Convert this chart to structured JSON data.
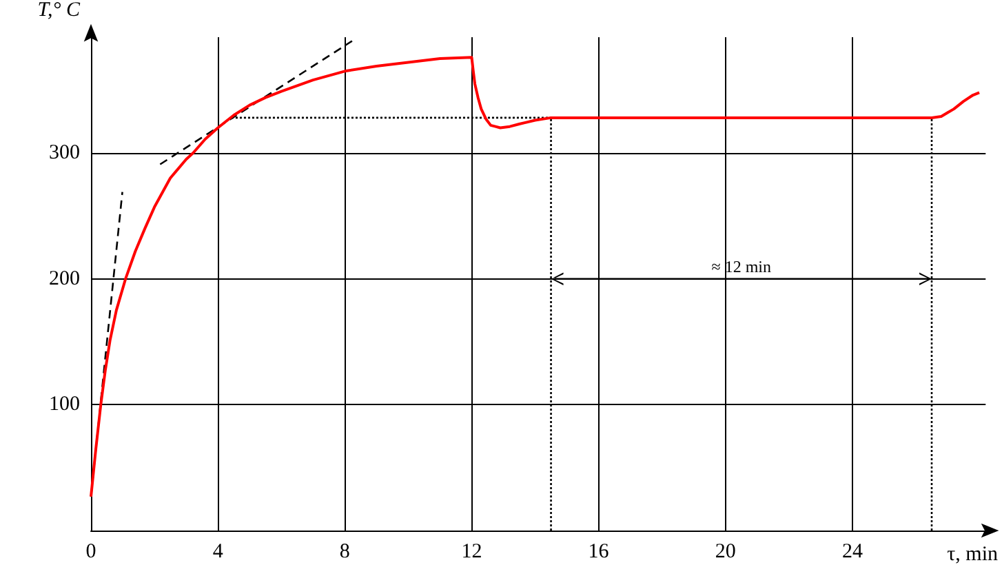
{
  "chart_data": {
    "type": "line",
    "xlabel": "τ, min",
    "ylabel": "T,° C",
    "xlim": [
      0,
      28.2
    ],
    "ylim": [
      0,
      392
    ],
    "xticks": [
      0,
      4,
      8,
      12,
      16,
      20,
      24
    ],
    "yticks": [
      100,
      200,
      300
    ],
    "grid": true,
    "marker": "none",
    "series": [
      {
        "color": "#ff0000",
        "line_style": "solid",
        "x": [
          0,
          0.15,
          0.31,
          0.45,
          0.6,
          0.8,
          1.09,
          1.4,
          1.7,
          2,
          2.5,
          3,
          3.22,
          3.6,
          4,
          4.5,
          5,
          5.5,
          6,
          7,
          8,
          9,
          10,
          11,
          12,
          12.05,
          12.1,
          12.2,
          12.3,
          12.45,
          12.6,
          12.75,
          12.9,
          13.2,
          13.5,
          14,
          14.5,
          20,
          26.5,
          26.8,
          27,
          27.2,
          27.5,
          27.8,
          28
        ],
        "values": [
          27,
          64,
          100,
          127,
          151,
          175,
          200,
          222,
          240,
          257,
          280,
          295,
          300,
          311,
          320,
          330,
          338,
          344,
          349,
          358,
          365,
          369,
          372,
          375,
          376,
          365,
          355,
          344,
          335,
          327,
          322,
          321,
          320,
          321,
          323,
          326,
          328,
          328,
          328,
          329,
          332,
          335,
          341,
          346,
          348
        ]
      },
      {
        "type": "line",
        "color": "#000000",
        "line_style": "dashed",
        "x": [
          0,
          0.99
        ],
        "values": [
          27,
          269
        ]
      },
      {
        "type": "line",
        "color": "#000000",
        "line_style": "dashed",
        "x": [
          2.18,
          8.23
        ],
        "values": [
          291,
          389
        ]
      },
      {
        "type": "line",
        "color": "#000000",
        "line_style": "dotted",
        "x": [
          4.43,
          14.5
        ],
        "values": [
          328,
          328
        ]
      },
      {
        "type": "line",
        "color": "#000000",
        "line_style": "dotted",
        "x": [
          14.5,
          14.5
        ],
        "values": [
          0,
          328
        ]
      },
      {
        "type": "line",
        "color": "#000000",
        "line_style": "dotted",
        "x": [
          26.5,
          26.5
        ],
        "values": [
          0,
          328
        ]
      }
    ],
    "annotations": [
      "≈ 12 min"
    ]
  }
}
